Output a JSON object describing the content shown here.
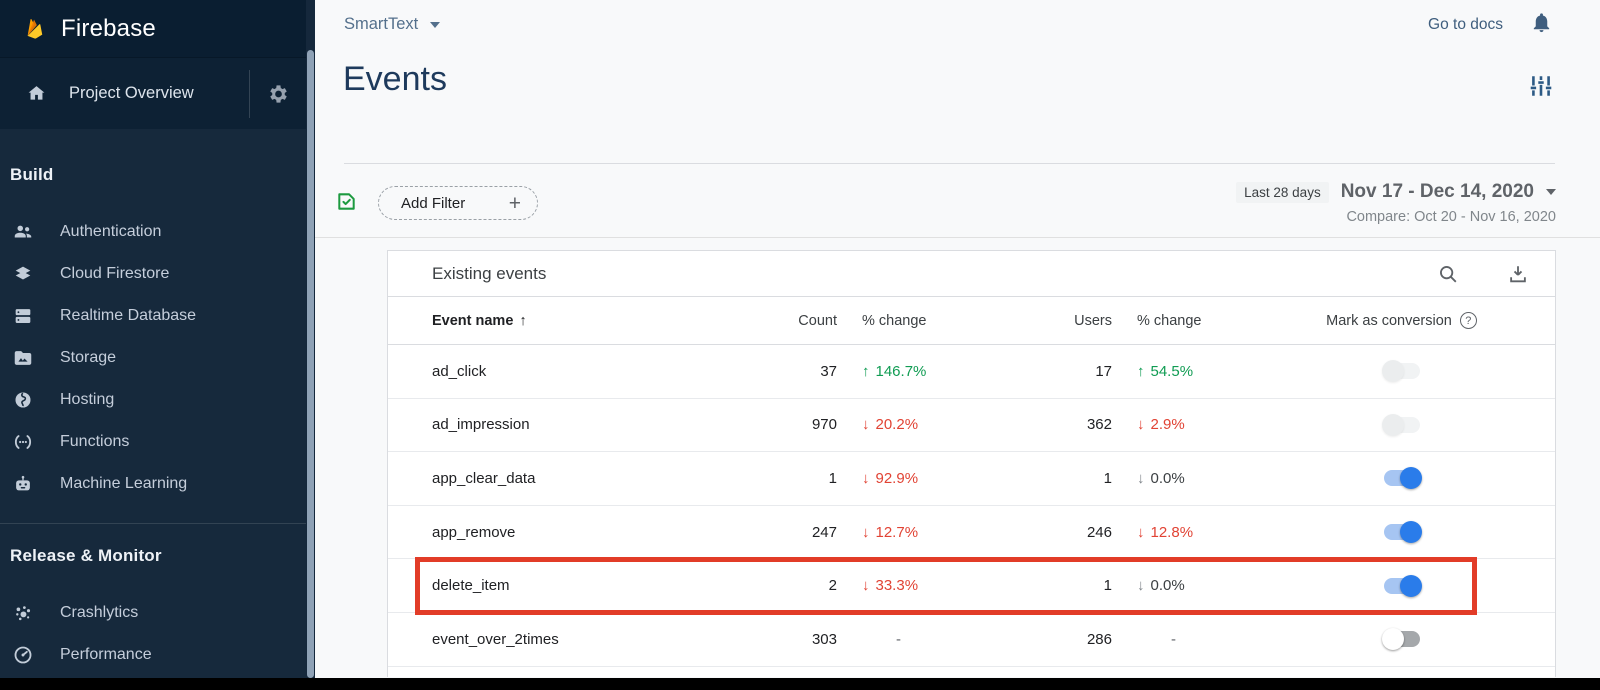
{
  "sidebar": {
    "brand": "Firebase",
    "project_overview": "Project Overview",
    "sections": [
      {
        "label": "Build",
        "items": [
          {
            "label": "Authentication",
            "icon": "people-icon"
          },
          {
            "label": "Cloud Firestore",
            "icon": "firestore-icon"
          },
          {
            "label": "Realtime Database",
            "icon": "database-icon"
          },
          {
            "label": "Storage",
            "icon": "storage-folder-icon"
          },
          {
            "label": "Hosting",
            "icon": "hosting-globe-icon"
          },
          {
            "label": "Functions",
            "icon": "functions-parens-icon"
          },
          {
            "label": "Machine Learning",
            "icon": "ml-robot-icon"
          }
        ]
      },
      {
        "label": "Release & Monitor",
        "items": [
          {
            "label": "Crashlytics",
            "icon": "crashlytics-spark-icon"
          },
          {
            "label": "Performance",
            "icon": "performance-speedometer-icon"
          }
        ]
      }
    ]
  },
  "topbar": {
    "project_name": "SmartText",
    "go_to_docs": "Go to docs"
  },
  "page": {
    "title": "Events"
  },
  "filterbar": {
    "add_filter_label": "Add Filter",
    "add_filter_plus": "+",
    "date_chip": "Last 28 days",
    "date_range": "Nov 17 - Dec 14, 2020",
    "compare": "Compare: Oct 20 - Nov 16, 2020"
  },
  "table": {
    "title": "Existing events",
    "columns": {
      "event_name": "Event name",
      "count": "Count",
      "pct_change_count": "% change",
      "users": "Users",
      "pct_change_users": "% change",
      "conversion": "Mark as conversion"
    },
    "rows": [
      {
        "name": "ad_click",
        "count": "37",
        "count_change": "146.7%",
        "count_dir": "up",
        "users": "17",
        "users_change": "54.5%",
        "users_dir": "up",
        "toggle": "faded-off",
        "highlight": false
      },
      {
        "name": "ad_impression",
        "count": "970",
        "count_change": "20.2%",
        "count_dir": "down",
        "users": "362",
        "users_change": "2.9%",
        "users_dir": "down",
        "toggle": "faded-off",
        "highlight": false
      },
      {
        "name": "app_clear_data",
        "count": "1",
        "count_change": "92.9%",
        "count_dir": "down",
        "users": "1",
        "users_change": "0.0%",
        "users_dir": "down-neutral",
        "toggle": "on",
        "highlight": false
      },
      {
        "name": "app_remove",
        "count": "247",
        "count_change": "12.7%",
        "count_dir": "down",
        "users": "246",
        "users_change": "12.8%",
        "users_dir": "down",
        "toggle": "on",
        "highlight": false
      },
      {
        "name": "delete_item",
        "count": "2",
        "count_change": "33.3%",
        "count_dir": "down",
        "users": "1",
        "users_change": "0.0%",
        "users_dir": "down-neutral",
        "toggle": "on",
        "highlight": true
      },
      {
        "name": "event_over_2times",
        "count": "303",
        "count_change": "-",
        "count_dir": "none",
        "users": "286",
        "users_change": "-",
        "users_dir": "none",
        "toggle": "off",
        "highlight": false
      }
    ]
  },
  "colors": {
    "sidebar_bg": "#16293c",
    "sidebar_header_bg": "#0a1e31",
    "title_navy": "#1e3a5c",
    "positive_green": "#109c53",
    "negative_red": "#e14334",
    "toggle_blue": "#2a7cea",
    "highlight_red": "#e23c28",
    "filter_doc_green": "#1c9a3f",
    "flame_yellow": "#ffca28",
    "flame_orange": "#ffa000"
  }
}
